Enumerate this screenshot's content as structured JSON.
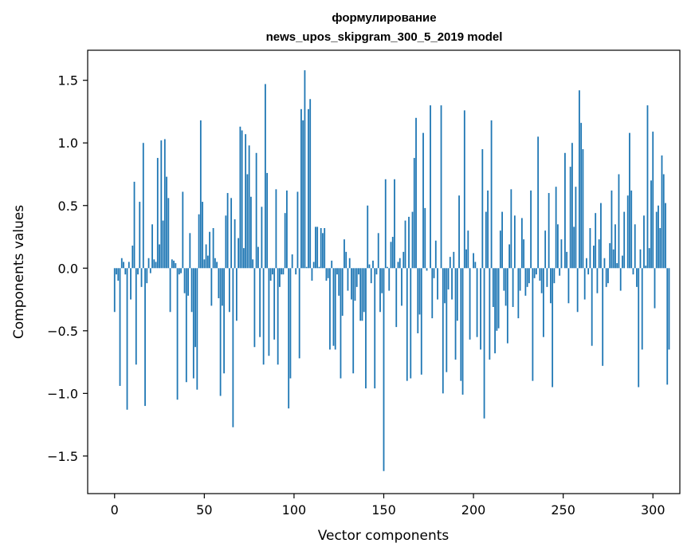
{
  "chart_data": {
    "type": "bar",
    "title": "формулирование",
    "subtitle": "news_upos_skipgram_300_5_2019 model",
    "xlabel": "Vector components",
    "ylabel": "Components values",
    "xlim": [
      -15,
      315
    ],
    "ylim": [
      -1.8,
      1.74
    ],
    "xticks": [
      0,
      50,
      100,
      150,
      200,
      250,
      300
    ],
    "xtick_labels": [
      "0",
      "50",
      "100",
      "150",
      "200",
      "250",
      "300"
    ],
    "yticks": [
      -1.5,
      -1.0,
      -0.5,
      0.0,
      0.5,
      1.0,
      1.5
    ],
    "ytick_labels": [
      "−1.5",
      "−1.0",
      "−0.5",
      "0.0",
      "0.5",
      "1.0",
      "1.5"
    ],
    "grid": false,
    "bar_color": "#1f77b4",
    "values": [
      -0.35,
      -0.05,
      -0.1,
      -0.94,
      0.08,
      0.05,
      -0.05,
      -1.13,
      0.05,
      -0.25,
      0.18,
      0.69,
      -0.77,
      -0.05,
      0.53,
      -0.15,
      1.0,
      -1.1,
      -0.12,
      0.08,
      -0.04,
      0.35,
      0.07,
      0.05,
      0.88,
      0.19,
      1.02,
      0.38,
      1.03,
      0.73,
      0.56,
      -0.35,
      0.07,
      0.06,
      0.04,
      -1.05,
      -0.05,
      -0.04,
      0.61,
      -0.2,
      -0.91,
      -0.22,
      0.28,
      -0.35,
      -0.88,
      -0.63,
      -0.97,
      0.43,
      1.18,
      0.53,
      0.07,
      0.19,
      0.1,
      0.29,
      -0.3,
      0.32,
      0.08,
      0.05,
      -0.24,
      -1.02,
      -0.3,
      -0.84,
      0.42,
      0.6,
      -0.35,
      0.56,
      -1.27,
      0.39,
      -0.42,
      0.24,
      1.13,
      1.1,
      0.16,
      1.07,
      0.75,
      0.98,
      0.57,
      0.07,
      -0.63,
      0.92,
      0.17,
      -0.55,
      0.49,
      -0.77,
      1.47,
      0.76,
      -0.7,
      -0.1,
      -0.05,
      -0.57,
      0.63,
      -0.77,
      -0.15,
      -0.05,
      -0.05,
      0.44,
      0.62,
      -1.12,
      -0.88,
      0.11,
      0.0,
      -0.05,
      0.61,
      -0.72,
      1.27,
      1.18,
      1.58,
      0.01,
      1.27,
      1.35,
      -0.1,
      0.05,
      0.33,
      0.33,
      0.01,
      0.32,
      0.28,
      0.32,
      -0.1,
      -0.08,
      -0.65,
      0.06,
      -0.62,
      -0.65,
      -0.05,
      -0.22,
      -0.88,
      -0.38,
      0.23,
      0.13,
      -0.18,
      0.08,
      -0.25,
      -0.84,
      -0.26,
      -0.15,
      -0.05,
      -0.42,
      -0.42,
      -0.35,
      -0.96,
      0.5,
      0.03,
      -0.12,
      0.06,
      -0.96,
      -0.05,
      0.28,
      -0.35,
      -0.2,
      -1.62,
      0.71,
      0.01,
      -0.18,
      0.21,
      0.25,
      0.71,
      -0.47,
      0.05,
      0.08,
      -0.3,
      0.13,
      0.38,
      -0.9,
      0.41,
      -0.88,
      0.45,
      0.88,
      1.2,
      -0.52,
      -0.37,
      -0.85,
      1.08,
      0.48,
      -0.02,
      0.0,
      1.3,
      -0.4,
      -0.08,
      0.22,
      -0.25,
      0.0,
      1.3,
      -1.0,
      -0.28,
      -0.83,
      -0.17,
      0.09,
      -0.25,
      0.13,
      -0.73,
      -0.42,
      0.58,
      -0.9,
      -1.01,
      1.26,
      0.15,
      0.3,
      -0.57,
      0.0,
      0.12,
      0.05,
      -0.55,
      0.0,
      -0.65,
      0.95,
      -1.2,
      0.45,
      0.62,
      -0.73,
      1.18,
      -0.31,
      -0.68,
      -0.5,
      -0.48,
      0.3,
      0.45,
      -0.18,
      -0.3,
      -0.6,
      0.19,
      0.63,
      -0.31,
      0.42,
      0.0,
      -0.4,
      -0.18,
      0.4,
      0.23,
      -0.22,
      -0.15,
      -0.12,
      0.62,
      -0.9,
      -0.08,
      -0.05,
      1.05,
      -0.1,
      -0.2,
      -0.55,
      0.3,
      -0.15,
      0.6,
      -0.28,
      -0.95,
      -0.12,
      0.65,
      0.35,
      -0.06,
      0.23,
      0.0,
      0.92,
      0.13,
      -0.28,
      0.81,
      1.0,
      0.33,
      0.65,
      -0.35,
      1.42,
      1.16,
      0.95,
      -0.25,
      0.08,
      -0.05,
      0.32,
      -0.62,
      0.18,
      0.44,
      -0.2,
      0.23,
      0.52,
      -0.78,
      0.08,
      -0.15,
      -0.12,
      0.2,
      0.62,
      0.15,
      0.35,
      0.04,
      0.75,
      -0.18,
      0.1,
      0.45,
      0.0,
      0.58,
      1.08,
      0.62,
      -0.05,
      0.35,
      -0.15,
      -0.95,
      0.15,
      -0.65,
      0.42,
      0.02,
      1.3,
      0.16,
      0.7,
      1.09,
      -0.32,
      0.45,
      0.5,
      0.32,
      0.9,
      0.75,
      0.52,
      -0.93,
      -0.65
    ]
  }
}
